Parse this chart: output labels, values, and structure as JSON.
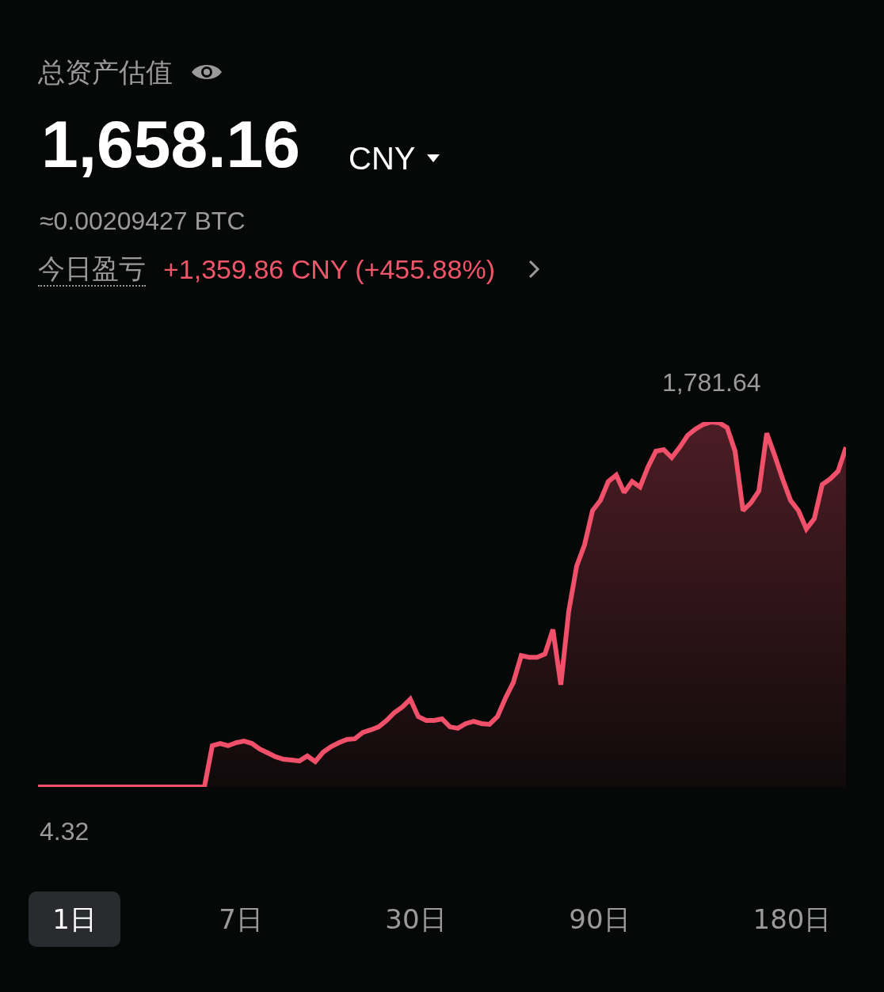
{
  "chart_data": {
    "type": "area",
    "title": "总资产估值",
    "annotations": [
      "1,658.16",
      "CNY",
      "≈0.00209427 BTC",
      "今日盈亏",
      "+1,359.86 CNY (+455.88%)",
      "1日",
      "7日",
      "30日",
      "90日",
      "180日"
    ],
    "categories": [
      null,
      null,
      null,
      null,
      null,
      null,
      null,
      null,
      null,
      null,
      null,
      null,
      null,
      null,
      null,
      null,
      null,
      null,
      null,
      null,
      null,
      null,
      null,
      null,
      null,
      null,
      null,
      null,
      null,
      null,
      null,
      null,
      null,
      null,
      null,
      null,
      null,
      null,
      null,
      null,
      null,
      null,
      null,
      null,
      null,
      null,
      null,
      null,
      null,
      null,
      null,
      null,
      null,
      null,
      null,
      null,
      null,
      null,
      null,
      null,
      null,
      null,
      null,
      null,
      null,
      null,
      null,
      null,
      null,
      null,
      null,
      null,
      null,
      null,
      null,
      null,
      null,
      null,
      null,
      null,
      null,
      null,
      null,
      null,
      null,
      null,
      null,
      null,
      null,
      null,
      null,
      null,
      null,
      null,
      null,
      null,
      null,
      null,
      null,
      null,
      null,
      null,
      null
    ],
    "series": [
      {
        "color": "#f0506a",
        "values": [
          4.32,
          4.32,
          4.32,
          4.32,
          4.32,
          4.32,
          4.32,
          4.32,
          4.32,
          4.32,
          4.32,
          4.32,
          4.32,
          4.32,
          4.32,
          4.32,
          4.32,
          4.32,
          4.32,
          4.32,
          4.32,
          4.32,
          205,
          216,
          205,
          220,
          228,
          216,
          189,
          170,
          151,
          139,
          135,
          131,
          155,
          128,
          174,
          201,
          220,
          236,
          239,
          270,
          282,
          297,
          328,
          367,
          394,
          432,
          347,
          328,
          328,
          336,
          297,
          290,
          313,
          324,
          313,
          309,
          347,
          436,
          513,
          644,
          636,
          636,
          652,
          771,
          502,
          860,
          1080,
          1184,
          1350,
          1400,
          1492,
          1523,
          1438,
          1492,
          1465,
          1562,
          1639,
          1647,
          1608,
          1658,
          1716,
          1747,
          1770,
          1781.64,
          1778,
          1754,
          1639,
          1350,
          1388,
          1446,
          1727,
          1619,
          1504,
          1400,
          1350,
          1261,
          1311,
          1477,
          1504,
          1542,
          1658
        ],
        "value_labels": [
          "4.32",
          null,
          null,
          null,
          null,
          null,
          null,
          null,
          null,
          null,
          null,
          null,
          null,
          null,
          null,
          null,
          null,
          null,
          null,
          null,
          null,
          null,
          null,
          null,
          null,
          null,
          null,
          null,
          null,
          null,
          null,
          null,
          null,
          null,
          null,
          null,
          null,
          null,
          null,
          null,
          null,
          null,
          null,
          null,
          null,
          null,
          null,
          null,
          null,
          null,
          null,
          null,
          null,
          null,
          null,
          null,
          null,
          null,
          null,
          null,
          null,
          null,
          null,
          null,
          null,
          null,
          null,
          null,
          null,
          null,
          null,
          null,
          null,
          null,
          null,
          null,
          null,
          null,
          null,
          null,
          null,
          null,
          null,
          null,
          null,
          "1,781.64",
          null,
          null,
          null,
          null,
          null,
          null,
          null,
          null,
          null,
          null,
          null,
          null,
          null,
          null,
          null,
          null,
          null
        ]
      }
    ],
    "tick_labels": false
  }
}
